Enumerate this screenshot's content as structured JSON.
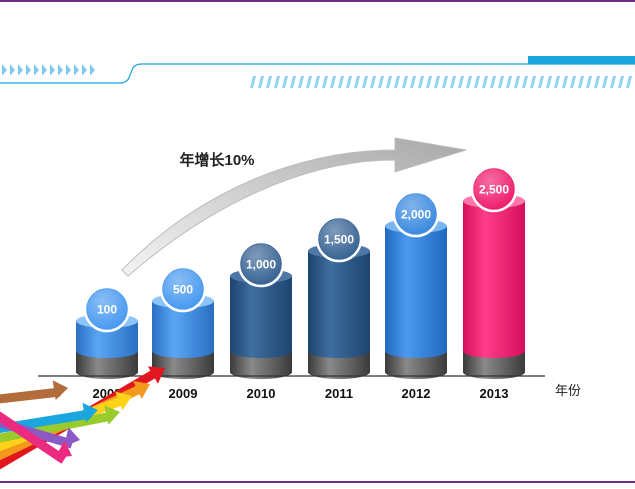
{
  "chart_data": {
    "type": "bar",
    "annotation": "年增长10%",
    "x_unit_label": "年份",
    "categories": [
      "2008",
      "2009",
      "2010",
      "2011",
      "2012",
      "2013"
    ],
    "values": [
      100,
      500,
      1000,
      1500,
      2000,
      2500
    ],
    "value_labels": [
      "100",
      "500",
      "1,000",
      "1,500",
      "2,000",
      "2,500"
    ],
    "bar_colors": [
      "#3f8fe8",
      "#3f8fe8",
      "#2b5d94",
      "#2b5d94",
      "#2f7fd4",
      "#ee1f6e"
    ],
    "bubble_colors": [
      "#4a9af0",
      "#4a9af0",
      "#3a6595",
      "#3a6595",
      "#3d8be0",
      "#f0206f"
    ],
    "grid": false,
    "legend": "none"
  },
  "decor": {
    "accent": "#1ba3dc",
    "frame_line": "#6a2c86"
  }
}
